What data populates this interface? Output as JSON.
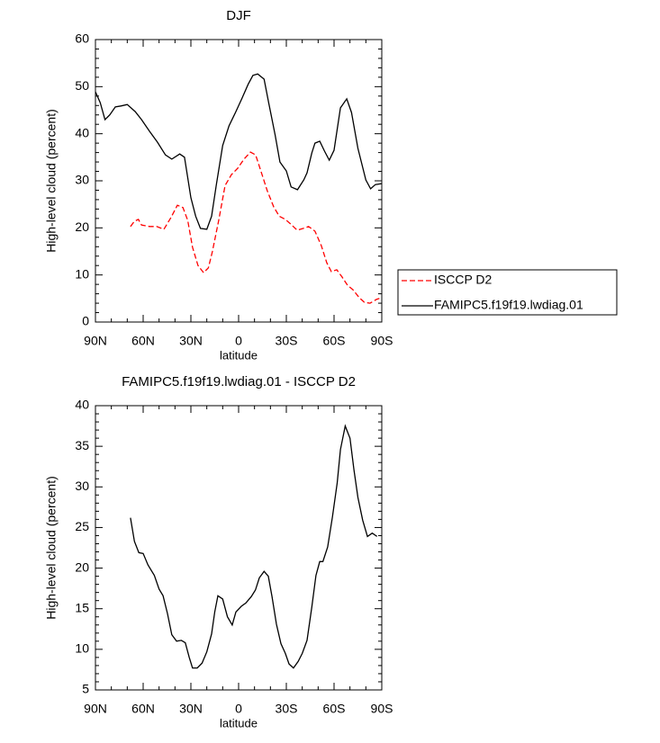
{
  "chart_data": [
    {
      "type": "line",
      "title": "DJF",
      "y_label": "High-level cloud (percent)",
      "x_label": "latitude",
      "xlim": [
        90,
        -90
      ],
      "xticks": [
        {
          "value": 90,
          "label": "90N"
        },
        {
          "value": 60,
          "label": "60N"
        },
        {
          "value": 30,
          "label": "30N"
        },
        0,
        {
          "value": -30,
          "label": "30S"
        },
        {
          "value": -60,
          "label": "60S"
        },
        {
          "value": -90,
          "label": "90S"
        }
      ],
      "ylim": [
        0,
        60
      ],
      "yticks": [
        0,
        10,
        20,
        30,
        40,
        50,
        60
      ],
      "legend": "outside-right",
      "series": [
        {
          "name": "ISCCP D2",
          "color": "#ff0000",
          "line_style": "dashed",
          "x": [
            68,
            65.5,
            63,
            61,
            56,
            51.5,
            47,
            42.5,
            38.5,
            35,
            32,
            29,
            25.5,
            22,
            19,
            16.5,
            12.5,
            8.5,
            4.5,
            0.5,
            -3.4,
            -7.4,
            -10.7,
            -14,
            -18,
            -22,
            -25.5,
            -29.4,
            -32.8,
            -36.8,
            -40.7,
            -44,
            -48,
            -52,
            -55.4,
            -58.3,
            -61.7,
            -65,
            -68.5,
            -71.8,
            -75.8,
            -79,
            -82.6,
            -86.6,
            -90
          ],
          "values": [
            20.3,
            21.4,
            21.8,
            20.6,
            20.3,
            20.3,
            19.7,
            22.2,
            24.8,
            24.3,
            21.6,
            15.9,
            12,
            10.5,
            11.5,
            14.9,
            21.6,
            29,
            31.3,
            32.7,
            34.6,
            36.1,
            35.5,
            32.1,
            27.9,
            24.5,
            22.5,
            21.8,
            20.8,
            19.5,
            19.9,
            20.3,
            19.3,
            16.2,
            12.6,
            10.7,
            11.1,
            9.6,
            7.8,
            6.9,
            5.2,
            4.2,
            4,
            4.8,
            5.2
          ]
        },
        {
          "name": "FAMIPC5.f19f19.lwdiag.01",
          "color": "#000000",
          "line_style": "solid",
          "x": [
            90,
            87,
            84,
            81,
            77.5,
            74,
            70,
            65,
            61,
            56,
            51,
            46,
            42,
            37,
            34,
            30,
            27,
            24,
            20,
            17,
            14,
            10,
            6,
            2,
            -2,
            -6,
            -9,
            -12,
            -16,
            -19,
            -23,
            -26,
            -30,
            -33,
            -37,
            -41,
            -43,
            -46,
            -48,
            -51,
            -54,
            -57,
            -60,
            -64,
            -68,
            -71,
            -75,
            -80,
            -83,
            -86,
            -90
          ],
          "values": [
            48.9,
            46.6,
            43,
            44,
            45.7,
            45.9,
            46.2,
            44.7,
            43,
            40.5,
            38.2,
            35.5,
            34.6,
            35.7,
            35,
            26.4,
            22.5,
            19.9,
            19.7,
            22.5,
            29.2,
            37.5,
            41.7,
            44.5,
            47.4,
            50.5,
            52.4,
            52.7,
            51.6,
            46.4,
            39.7,
            34,
            32.1,
            28.7,
            28.1,
            30.2,
            31.7,
            35.9,
            38,
            38.4,
            36.3,
            34.4,
            36.5,
            45.5,
            47.4,
            44.5,
            36.9,
            30.2,
            28.3,
            29.2,
            29.4
          ]
        }
      ]
    },
    {
      "type": "line",
      "title": "FAMIPC5.f19f19.lwdiag.01 - ISCCP D2",
      "y_label": "High-level cloud (percent)",
      "x_label": "latitude",
      "xlim": [
        90,
        -90
      ],
      "xticks": [
        {
          "value": 90,
          "label": "90N"
        },
        {
          "value": 60,
          "label": "60N"
        },
        {
          "value": 30,
          "label": "30N"
        },
        0,
        {
          "value": -30,
          "label": "30S"
        },
        {
          "value": -60,
          "label": "60S"
        },
        {
          "value": -90,
          "label": "90S"
        }
      ],
      "ylim": [
        5,
        40
      ],
      "yticks": [
        5,
        10,
        15,
        20,
        25,
        30,
        35,
        40
      ],
      "color": "#000000",
      "x": [
        68,
        65.5,
        62.7,
        60,
        57,
        53,
        50,
        47.5,
        44.7,
        42,
        39,
        36,
        33.5,
        31,
        29,
        26,
        23,
        20,
        17,
        15,
        13,
        10,
        7,
        4,
        1.7,
        -1.7,
        -4.5,
        -8,
        -10.6,
        -13,
        -16,
        -18.7,
        -21,
        -23.8,
        -26.6,
        -29.4,
        -31.7,
        -34.5,
        -37.4,
        -40,
        -43,
        -46,
        -48.6,
        -51,
        -53,
        -56,
        -59,
        -62,
        -64,
        -67,
        -70,
        -72.5,
        -75,
        -78,
        -81,
        -84,
        -87
      ],
      "values": [
        26.2,
        23.3,
        21.9,
        21.8,
        20.4,
        19.1,
        17.4,
        16.6,
        14.4,
        11.8,
        11,
        11.1,
        10.8,
        9,
        7.7,
        7.7,
        8.3,
        9.7,
        11.9,
        14.6,
        16.6,
        16.2,
        14,
        13,
        14.6,
        15.3,
        15.7,
        16.5,
        17.3,
        18.8,
        19.6,
        19,
        16.5,
        13.1,
        10.7,
        9.5,
        8.2,
        7.7,
        8.5,
        9.5,
        11.1,
        15.2,
        19.1,
        20.8,
        20.8,
        22.6,
        26.3,
        30.5,
        34.6,
        37.5,
        36,
        32.1,
        28.7,
        25.9,
        23.9,
        24.3,
        23.9
      ]
    }
  ]
}
